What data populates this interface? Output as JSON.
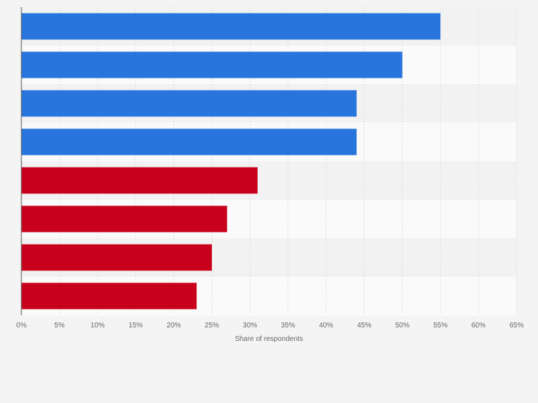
{
  "chart_data": {
    "type": "bar",
    "orientation": "horizontal",
    "categories": [
      "",
      "",
      "",
      "",
      "",
      "",
      "",
      ""
    ],
    "values": [
      55,
      50,
      44,
      44,
      31,
      27,
      25,
      23
    ],
    "bar_colors": [
      "#2876dd",
      "#2876dd",
      "#2876dd",
      "#2876dd",
      "#c9001b",
      "#c9001b",
      "#c9001b",
      "#c9001b"
    ],
    "title": "",
    "xlabel": "Share of respondents",
    "ylabel": "",
    "xlim": [
      0,
      65
    ],
    "xticks": [
      0,
      5,
      10,
      15,
      20,
      25,
      30,
      35,
      40,
      45,
      50,
      55,
      60,
      65
    ],
    "xtick_labels": [
      "0%",
      "5%",
      "10%",
      "15%",
      "20%",
      "25%",
      "30%",
      "35%",
      "40%",
      "45%",
      "50%",
      "55%",
      "60%",
      "65%"
    ],
    "grid": true,
    "legend": false
  },
  "colors": {
    "background": "#f4f4f4",
    "band_dark": "#f2f2f2",
    "band_light": "#fafafa",
    "grid": "#dcdcdc",
    "axis": "#555555"
  }
}
